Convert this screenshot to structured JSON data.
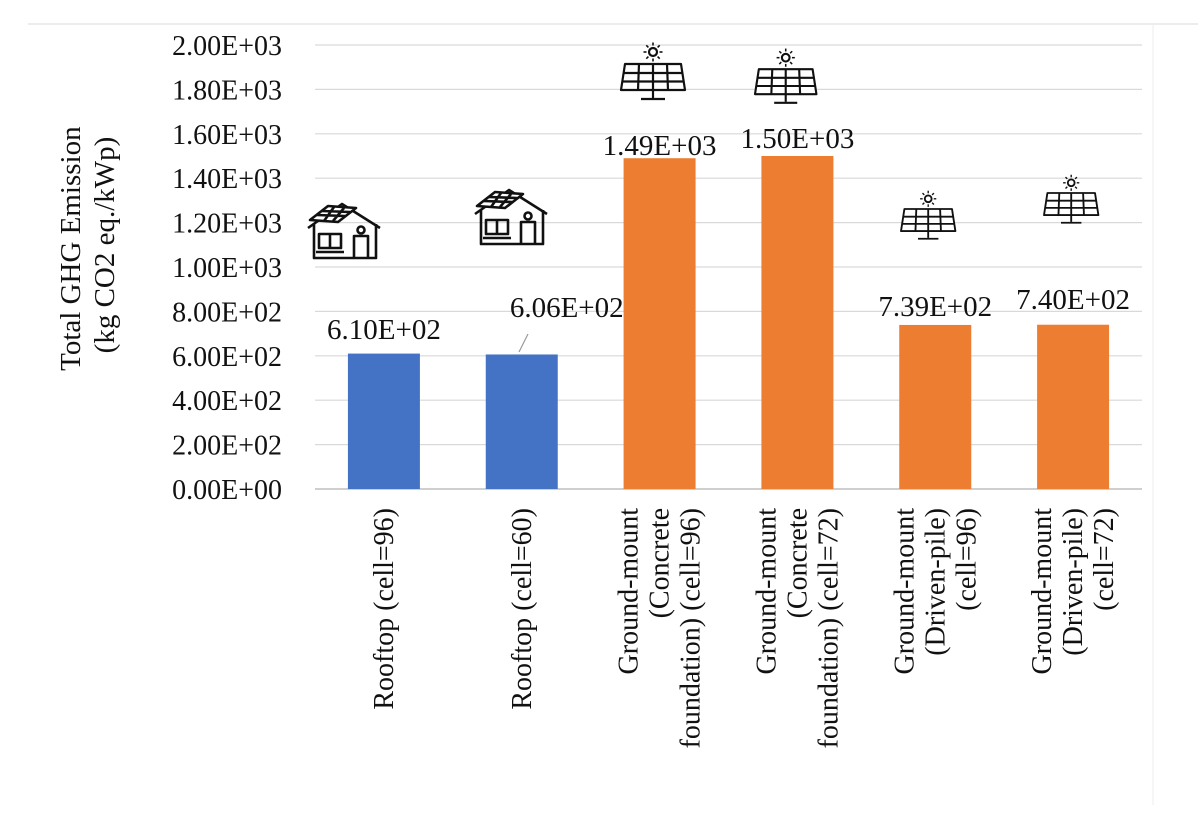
{
  "chart_data": {
    "type": "bar",
    "title": "",
    "ylabel_lines": [
      "Total GHG Emission",
      "(kg CO2 eq./kWp)"
    ],
    "ylim": [
      0,
      2000
    ],
    "yticks": [
      0,
      200,
      400,
      600,
      800,
      1000,
      1200,
      1400,
      1600,
      1800,
      2000
    ],
    "ytick_labels": [
      "0.00E+00",
      "2.00E+02",
      "4.00E+02",
      "6.00E+02",
      "8.00E+02",
      "1.00E+03",
      "1.20E+03",
      "1.40E+03",
      "1.60E+03",
      "1.80E+03",
      "2.00E+03"
    ],
    "grid": true,
    "categories": [
      "Rooftop (cell=96)",
      "Rooftop (cell=60)",
      "Ground-mount (Concrete foundation) (cell=96)",
      "Ground-mount (Concrete foundation) (cell=72)",
      "Ground-mount (Driven-pile) (cell=96)",
      "Ground-mount (Driven-pile) (cell=72)"
    ],
    "category_label_lines": [
      [
        "Rooftop (cell=96)"
      ],
      [
        "Rooftop (cell=60)"
      ],
      [
        "Ground-mount",
        "(Concrete",
        "foundation) (cell=96)"
      ],
      [
        "Ground-mount",
        "(Concrete",
        "foundation) (cell=72)"
      ],
      [
        "Ground-mount",
        "(Driven-pile)",
        "(cell=96)"
      ],
      [
        "Ground-mount",
        "(Driven-pile)",
        "(cell=72)"
      ]
    ],
    "values": [
      610,
      606,
      1490,
      1500,
      739,
      740
    ],
    "value_labels": [
      "6.10E+02",
      "6.06E+02",
      "1.49E+03",
      "1.50E+03",
      "7.39E+02",
      "7.40E+02"
    ],
    "bar_colors": [
      "#4472C4",
      "#4472C4",
      "#ED7D31",
      "#ED7D31",
      "#ED7D31",
      "#ED7D31"
    ],
    "icons": [
      "house-icon",
      "house-icon",
      "solar-panel-icon",
      "solar-panel-icon",
      "solar-panel-icon",
      "solar-panel-icon"
    ]
  }
}
